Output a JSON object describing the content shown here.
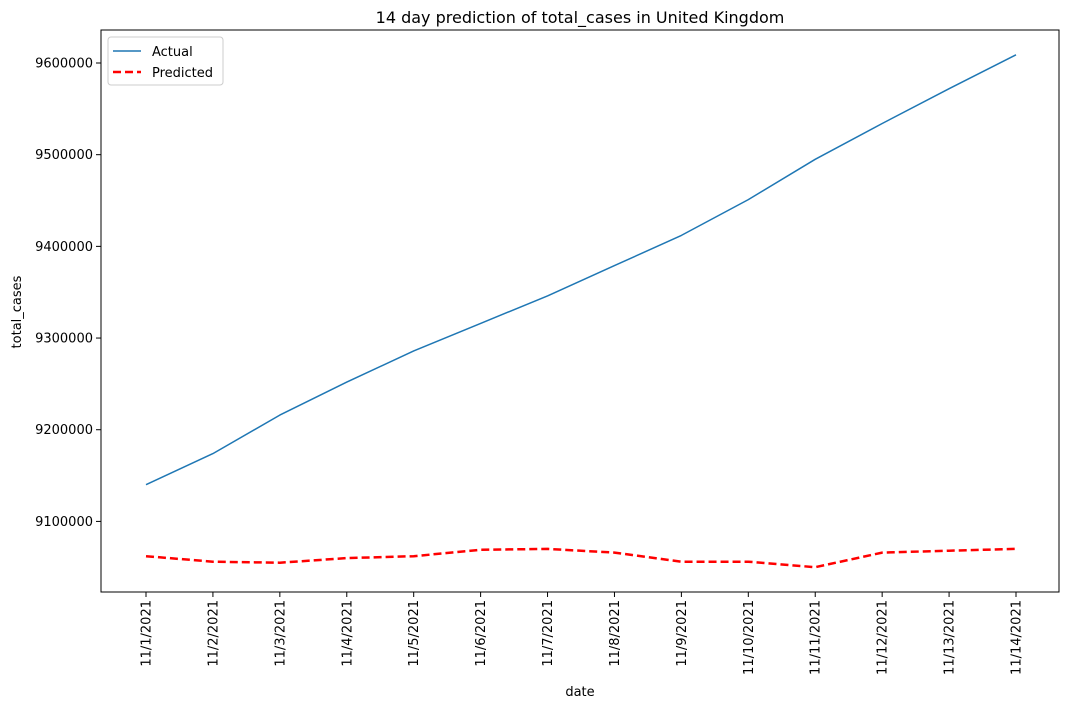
{
  "chart_data": {
    "type": "line",
    "title": "14 day prediction of total_cases in United Kingdom",
    "xlabel": "date",
    "ylabel": "total_cases",
    "categories": [
      "11/1/2021",
      "11/2/2021",
      "11/3/2021",
      "11/4/2021",
      "11/5/2021",
      "11/6/2021",
      "11/7/2021",
      "11/8/2021",
      "11/9/2021",
      "11/10/2021",
      "11/11/2021",
      "11/12/2021",
      "11/13/2021",
      "11/14/2021"
    ],
    "series": [
      {
        "name": "Actual",
        "color": "#1f77b4",
        "style": "solid",
        "values": [
          9140000,
          9174000,
          9216000,
          9252000,
          9286000,
          9316000,
          9346000,
          9379000,
          9412000,
          9451000,
          9495000,
          9534000,
          9572000,
          9609000
        ]
      },
      {
        "name": "Predicted",
        "color": "#ff0000",
        "style": "dashed",
        "values": [
          9062000,
          9056000,
          9055000,
          9060000,
          9062000,
          9069000,
          9070000,
          9066000,
          9056000,
          9056000,
          9050000,
          9066000,
          9068000,
          9070000
        ]
      }
    ],
    "ylim": [
      9023000,
      9636000
    ],
    "yticks": [
      9100000,
      9200000,
      9300000,
      9400000,
      9500000,
      9600000
    ],
    "ytick_labels": [
      "9100000",
      "9200000",
      "9300000",
      "9400000",
      "9500000",
      "9600000"
    ],
    "legend": "top-left",
    "grid": false
  }
}
